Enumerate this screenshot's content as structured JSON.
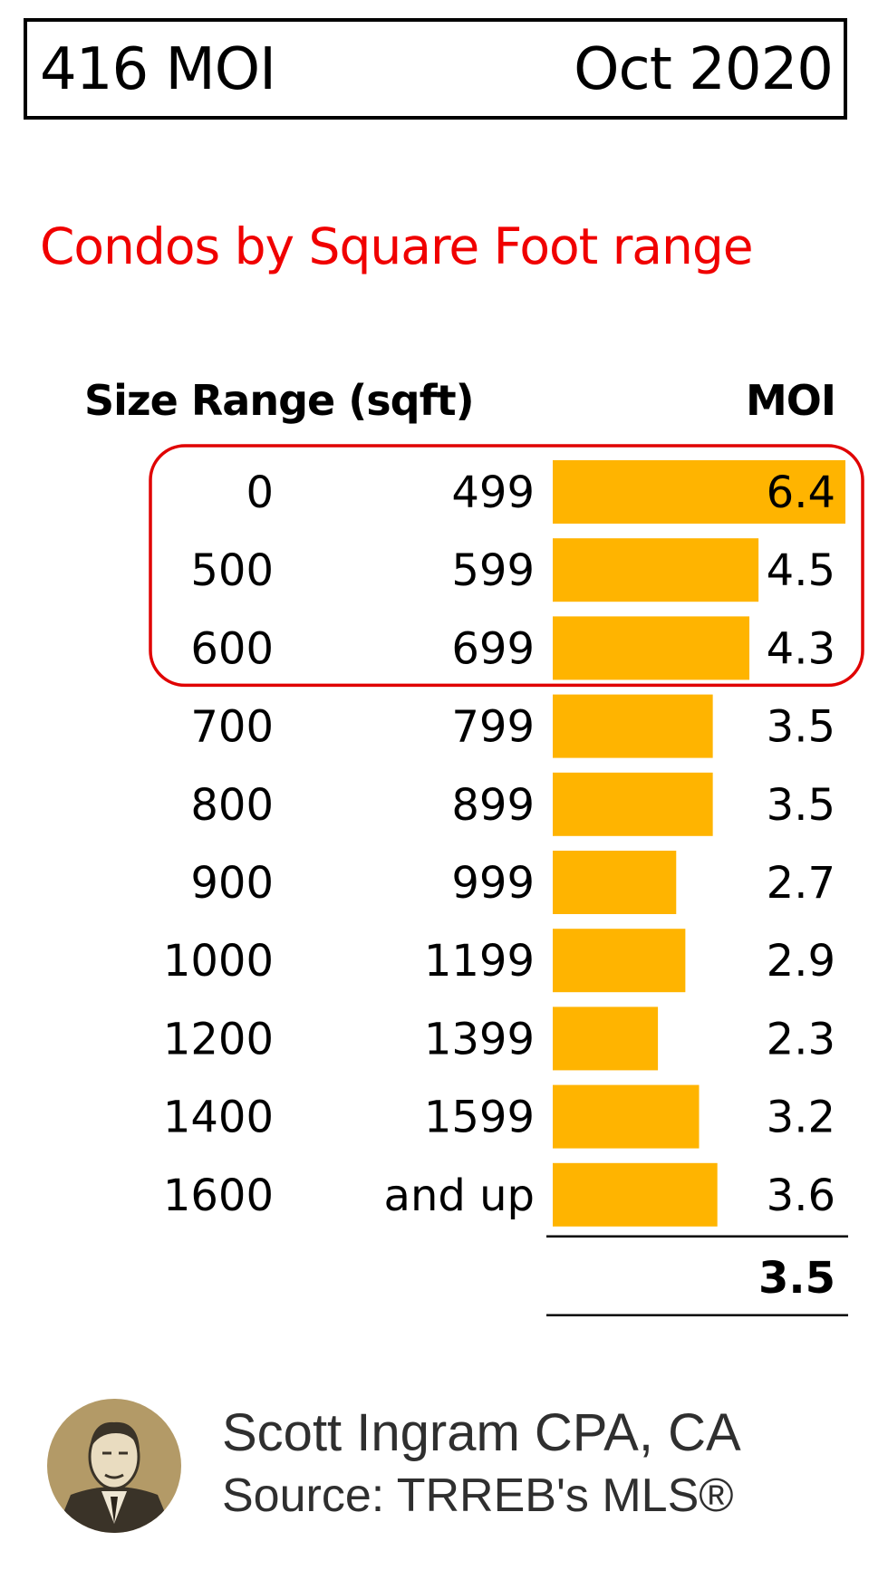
{
  "header": {
    "left": "416 MOI",
    "right": "Oct 2020"
  },
  "subtitle": "Condos by Square Foot range",
  "colors": {
    "bar": "#ffb400",
    "subtitle": "#f00000",
    "highlight_outline": "#e00000"
  },
  "chart_data": {
    "type": "table",
    "columns": [
      "Size Range (sqft)",
      "MOI"
    ],
    "rows": [
      {
        "from": "0",
        "to": "499",
        "moi": "6.4"
      },
      {
        "from": "500",
        "to": "599",
        "moi": "4.5"
      },
      {
        "from": "600",
        "to": "699",
        "moi": "4.3"
      },
      {
        "from": "700",
        "to": "799",
        "moi": "3.5"
      },
      {
        "from": "800",
        "to": "899",
        "moi": "3.5"
      },
      {
        "from": "900",
        "to": "999",
        "moi": "2.7"
      },
      {
        "from": "1000",
        "to": "1199",
        "moi": "2.9"
      },
      {
        "from": "1200",
        "to": "1399",
        "moi": "2.3"
      },
      {
        "from": "1400",
        "to": "1599",
        "moi": "3.2"
      },
      {
        "from": "1600",
        "to": "and up",
        "moi": "3.6"
      }
    ],
    "total": "3.5",
    "bar_scale_max": 6.4,
    "highlighted_rows": [
      0,
      1,
      2
    ]
  },
  "footer": {
    "name": "Scott Ingram CPA, CA",
    "source": "Source: TRREB's MLS®"
  }
}
